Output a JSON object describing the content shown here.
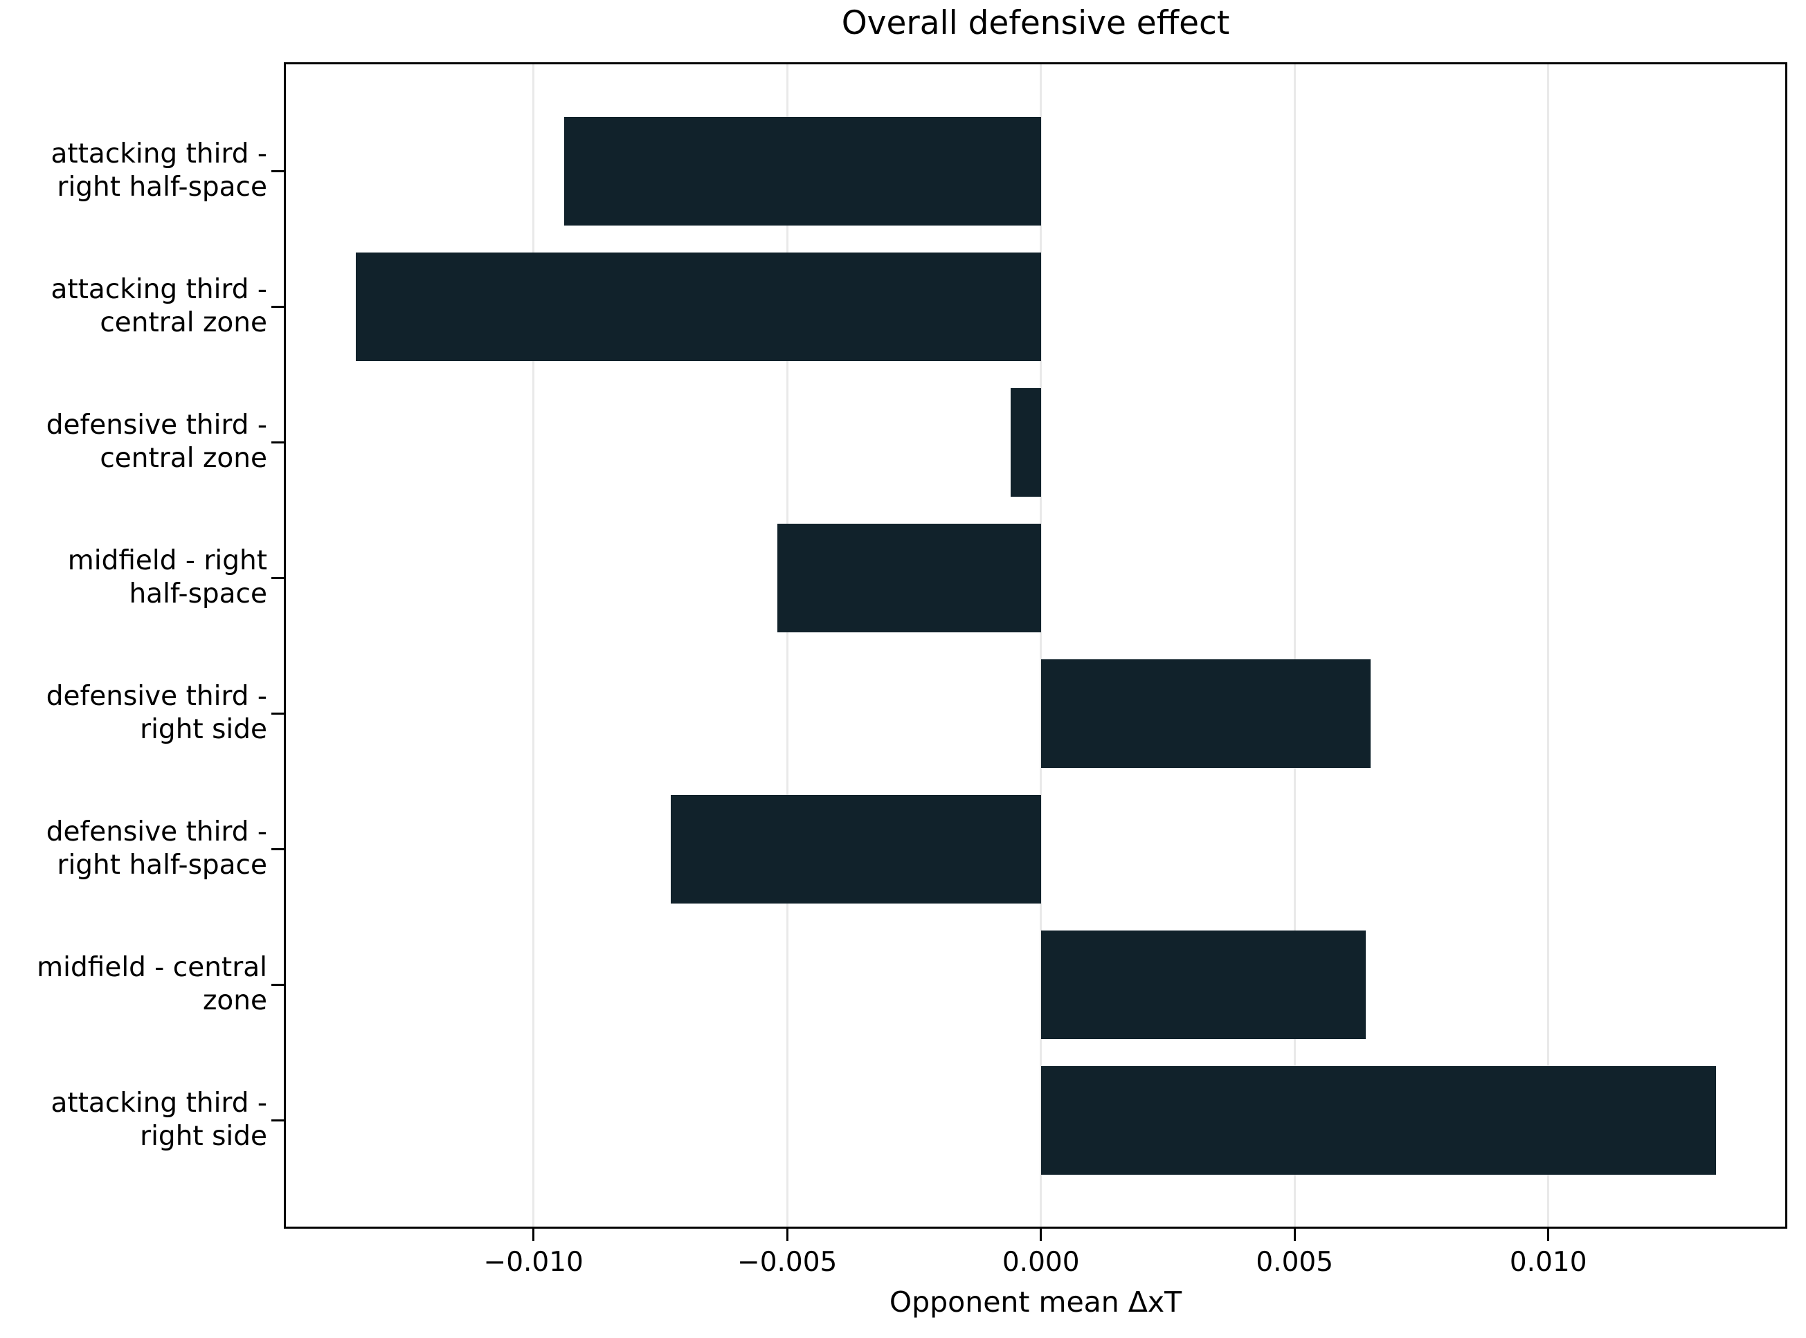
{
  "title": "Overall defensive effect",
  "chart_data": {
    "type": "bar",
    "orientation": "horizontal",
    "title": "Overall defensive effect",
    "xlabel": "Opponent mean ΔxT",
    "ylabel": "",
    "categories": [
      "attacking third - right half-space",
      "attacking third - central zone",
      "defensive third - central zone",
      "midfield - right half-space",
      "defensive third - right side",
      "defensive third - right half-space",
      "midfield - central zone",
      "attacking third - right side"
    ],
    "category_lines": [
      [
        "attacking third -",
        "right half-space"
      ],
      [
        "attacking third -",
        "central zone"
      ],
      [
        "defensive third -",
        "central zone"
      ],
      [
        "midfield - right",
        "half-space"
      ],
      [
        "defensive third -",
        "right side"
      ],
      [
        "defensive third -",
        "right half-space"
      ],
      [
        "midfield - central",
        "zone"
      ],
      [
        "attacking third -",
        "right side"
      ]
    ],
    "values": [
      -0.0094,
      -0.0135,
      -0.0006,
      -0.0052,
      0.0065,
      -0.0073,
      0.0064,
      0.0133
    ],
    "xlim": [
      -0.01488,
      0.01467
    ],
    "xticks": {
      "values": [
        -0.01,
        -0.005,
        0.0,
        0.005,
        0.01
      ],
      "labels": [
        "−0.010",
        "−0.005",
        "0.000",
        "0.005",
        "0.010"
      ]
    },
    "grid": "vertical",
    "legend": "none",
    "bar_color": "#11222b",
    "grid_color": "#e9e9e9",
    "axis_color": "#000000",
    "text_color": "#000000",
    "background_color": "#ffffff"
  }
}
